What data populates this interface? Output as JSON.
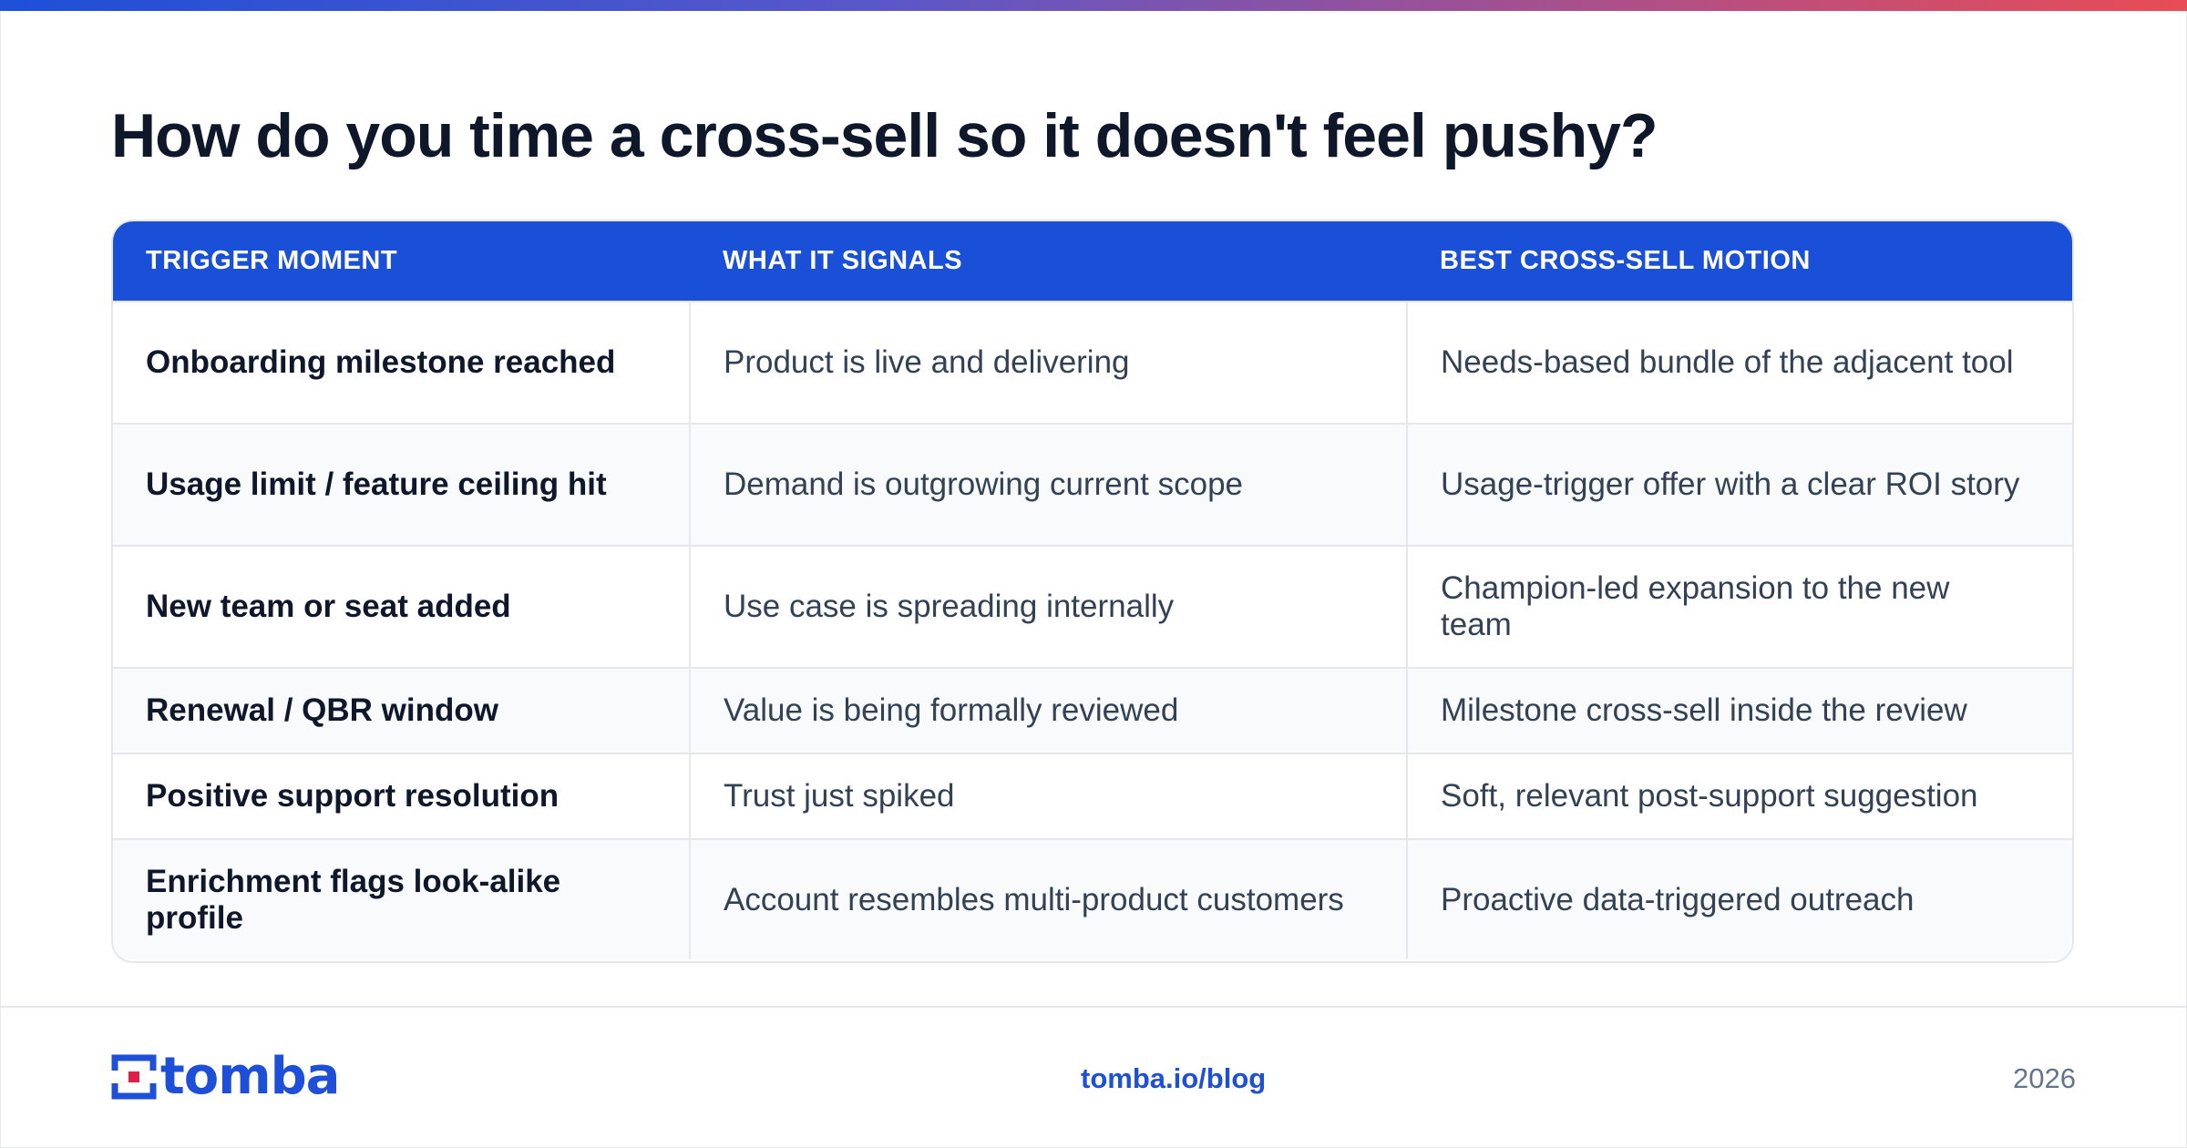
{
  "accent_colors": {
    "brand": "#1d4fd8",
    "header_bg": "#1a4fd7",
    "gradient_start": "#1d4fd8",
    "gradient_end": "#e94c55",
    "logo_red": "#e11d48"
  },
  "title": "How do you time a cross-sell so it doesn't feel pushy?",
  "table": {
    "headers": [
      "TRIGGER MOMENT",
      "WHAT IT SIGNALS",
      "BEST CROSS-SELL MOTION"
    ],
    "rows": [
      [
        "Onboarding milestone reached",
        "Product is live and delivering",
        "Needs-based bundle of the adjacent tool"
      ],
      [
        "Usage limit / feature ceiling hit",
        "Demand is outgrowing current scope",
        "Usage-trigger offer with a clear ROI story"
      ],
      [
        "New team or seat added",
        "Use case is spreading internally",
        "Champion-led expansion to the new team"
      ],
      [
        "Renewal / QBR window",
        "Value is being formally reviewed",
        "Milestone cross-sell inside the review"
      ],
      [
        "Positive support resolution",
        "Trust just spiked",
        "Soft, relevant post-support suggestion"
      ],
      [
        "Enrichment flags look-alike profile",
        "Account resembles multi-product customers",
        "Proactive data-triggered outreach"
      ]
    ]
  },
  "footer": {
    "logo_text": "tomba",
    "logo_icon": "tomba-logo-icon",
    "link": "tomba.io/blog",
    "year": "2026"
  }
}
